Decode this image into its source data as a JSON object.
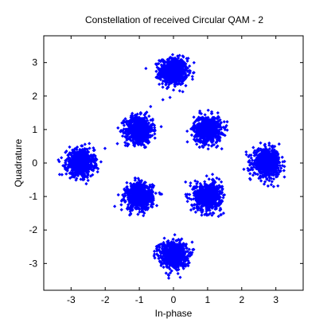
{
  "chart_data": {
    "type": "scatter",
    "title": "Constellation of received Circular QAM - 2",
    "xlabel": "In-phase",
    "ylabel": "Quadrature",
    "xlim": [
      -3.8,
      3.8
    ],
    "ylim": [
      -3.8,
      3.8
    ],
    "xticks": [
      -3,
      -2,
      -1,
      0,
      1,
      2,
      3
    ],
    "yticks": [
      -3,
      -2,
      -1,
      0,
      1,
      2,
      3
    ],
    "xtick_labels": [
      "-3",
      "-2",
      "-1",
      "0",
      "1",
      "2",
      "3"
    ],
    "ytick_labels": [
      "-3",
      "-2",
      "-1",
      "0",
      "1",
      "2",
      "3"
    ],
    "grid": false,
    "legend": "none",
    "marker_color": "#0000ff",
    "marker": "diamond",
    "noise_std": 0.2,
    "points_per_cluster": 700,
    "clusters": [
      {
        "x": 0,
        "y": 2.73
      },
      {
        "x": -1,
        "y": 1
      },
      {
        "x": 1,
        "y": 1
      },
      {
        "x": -2.73,
        "y": 0
      },
      {
        "x": 2.73,
        "y": 0
      },
      {
        "x": -1,
        "y": -1
      },
      {
        "x": 1,
        "y": -1
      },
      {
        "x": 0,
        "y": -2.73
      }
    ]
  }
}
